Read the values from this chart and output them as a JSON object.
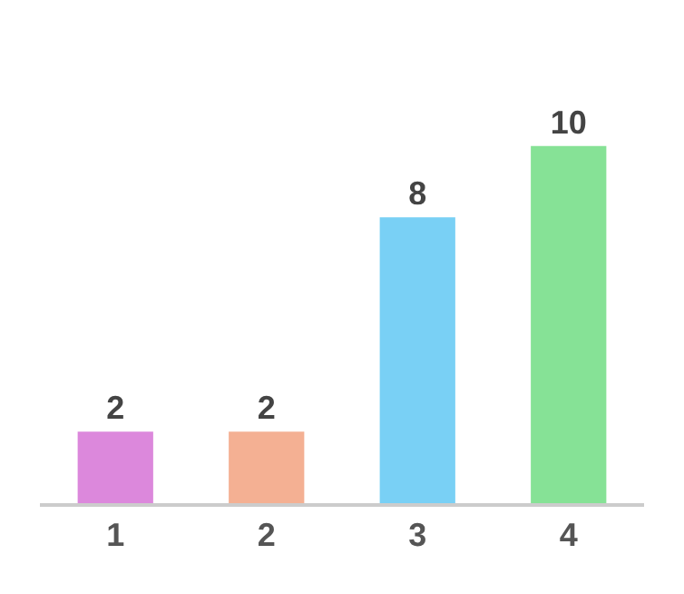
{
  "chart_data": {
    "type": "bar",
    "categories": [
      "1",
      "2",
      "3",
      "4"
    ],
    "values": [
      2,
      2,
      8,
      10
    ],
    "colors": [
      "#dc88dc",
      "#f4b093",
      "#79d0f5",
      "#86e296"
    ],
    "data_labels": true,
    "legend": false
  }
}
